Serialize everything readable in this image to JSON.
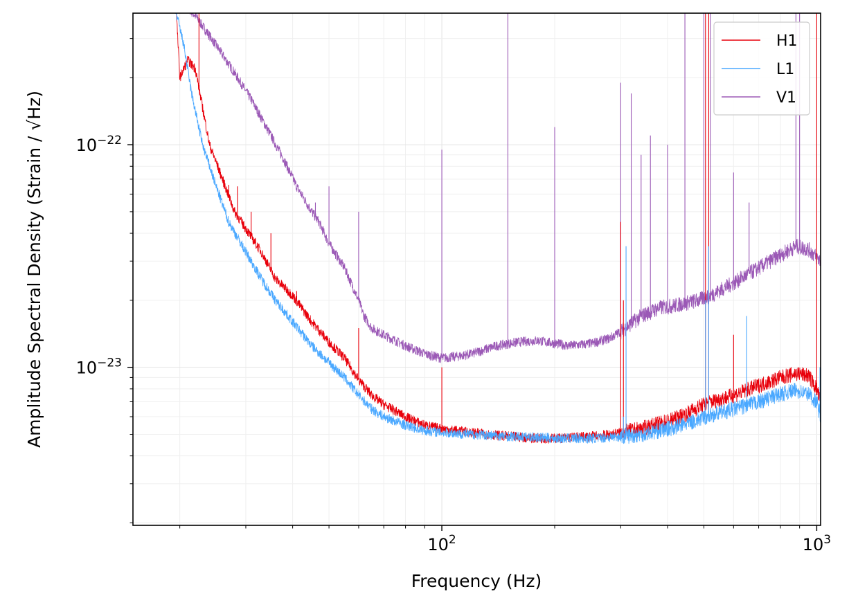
{
  "chart_data": {
    "type": "line",
    "xlabel": "Frequency (Hz)",
    "ylabel": "Amplitude Spectral Density (Strain / √Hz)",
    "xscale": "log",
    "yscale": "log",
    "xlim": [
      15,
      1024
    ],
    "ylim": [
      1.95e-24,
      3.9e-22
    ],
    "grid": true,
    "legend_position": "top-right",
    "x_ticks": [
      {
        "value": 100,
        "base": "10",
        "exp": "2"
      },
      {
        "value": 1000,
        "base": "10",
        "exp": "3"
      }
    ],
    "y_ticks": [
      {
        "value": 1e-23,
        "base": "10",
        "exp": "−23"
      },
      {
        "value": 1e-22,
        "base": "10",
        "exp": "−22"
      }
    ],
    "series": [
      {
        "name": "V1",
        "color": "#9b59b6",
        "x": [
          20,
          22,
          25,
          28,
          31,
          35,
          38,
          41,
          45,
          47,
          50,
          55,
          60,
          62,
          65,
          70,
          80,
          90,
          100,
          110,
          120,
          140,
          160,
          180,
          200,
          220,
          250,
          280,
          300,
          340,
          380,
          420,
          480,
          520,
          600,
          700,
          800,
          880,
          950,
          1024
        ],
        "y": [
          4.5e-22,
          3.8e-22,
          2.8e-22,
          2.1e-22,
          1.6e-22,
          1.1e-22,
          8.5e-23,
          6.5e-23,
          5e-23,
          4.5e-23,
          3.6e-23,
          2.8e-23,
          2e-23,
          1.7e-23,
          1.5e-23,
          1.4e-23,
          1.25e-23,
          1.15e-23,
          1.1e-23,
          1.12e-23,
          1.15e-23,
          1.25e-23,
          1.3e-23,
          1.32e-23,
          1.28e-23,
          1.25e-23,
          1.28e-23,
          1.35e-23,
          1.45e-23,
          1.7e-23,
          1.85e-23,
          1.9e-23,
          2e-23,
          2.1e-23,
          2.4e-23,
          2.8e-23,
          3.2e-23,
          3.5e-23,
          3.4e-23,
          3e-23
        ],
        "spikes": [
          {
            "f": 46,
            "a": 5.5e-23
          },
          {
            "f": 50,
            "a": 6.5e-23
          },
          {
            "f": 60,
            "a": 5e-23
          },
          {
            "f": 100,
            "a": 9.5e-23
          },
          {
            "f": 150,
            "a": 4e-22
          },
          {
            "f": 200,
            "a": 1.2e-22
          },
          {
            "f": 300,
            "a": 1.9e-22
          },
          {
            "f": 320,
            "a": 1.7e-22
          },
          {
            "f": 340,
            "a": 9e-23
          },
          {
            "f": 360,
            "a": 1.1e-22
          },
          {
            "f": 400,
            "a": 1e-22
          },
          {
            "f": 445,
            "a": 4e-22
          },
          {
            "f": 500,
            "a": 4e-22
          },
          {
            "f": 520,
            "a": 4e-22
          },
          {
            "f": 600,
            "a": 7.5e-23
          },
          {
            "f": 660,
            "a": 5.5e-23
          },
          {
            "f": 880,
            "a": 4e-22
          },
          {
            "f": 900,
            "a": 4e-22
          }
        ]
      },
      {
        "name": "H1",
        "color": "#e8000b",
        "x": [
          19.5,
          20,
          21,
          22,
          24,
          26,
          28,
          30,
          33,
          36,
          40,
          45,
          50,
          55,
          60,
          65,
          70,
          80,
          90,
          100,
          120,
          150,
          180,
          200,
          220,
          250,
          280,
          300,
          340,
          380,
          420,
          450,
          480,
          520,
          600,
          700,
          800,
          880,
          950,
          1000,
          1024
        ],
        "y": [
          4.5e-22,
          2e-22,
          2.4e-22,
          2.2e-22,
          1e-22,
          7e-23,
          5e-23,
          4.2e-23,
          3.3e-23,
          2.5e-23,
          2.1e-23,
          1.6e-23,
          1.3e-23,
          1.1e-23,
          8.8e-24,
          7.5e-24,
          6.8e-24,
          6e-24,
          5.5e-24,
          5.3e-24,
          5.1e-24,
          4.9e-24,
          4.8e-24,
          4.8e-24,
          4.85e-24,
          4.9e-24,
          5e-24,
          5.1e-24,
          5.3e-24,
          5.6e-24,
          5.9e-24,
          6.2e-24,
          6.6e-24,
          7e-24,
          7.5e-24,
          8.3e-24,
          9e-24,
          9.4e-24,
          9.2e-24,
          8e-24,
          7e-24
        ],
        "spikes": [
          {
            "f": 22.5,
            "a": 4.5e-22
          },
          {
            "f": 27,
            "a": 6.6e-23
          },
          {
            "f": 28.5,
            "a": 6.5e-23
          },
          {
            "f": 31,
            "a": 5e-23
          },
          {
            "f": 35,
            "a": 4e-23
          },
          {
            "f": 41,
            "a": 2.2e-23
          },
          {
            "f": 60,
            "a": 1.5e-23
          },
          {
            "f": 100,
            "a": 1e-23
          },
          {
            "f": 300,
            "a": 4.5e-23
          },
          {
            "f": 305,
            "a": 2e-23
          },
          {
            "f": 505,
            "a": 4e-22
          },
          {
            "f": 515,
            "a": 4e-22
          },
          {
            "f": 600,
            "a": 1.4e-23
          },
          {
            "f": 1000,
            "a": 4e-22
          }
        ]
      },
      {
        "name": "L1",
        "color": "#4aa8ff",
        "x": [
          18.5,
          19.5,
          20.5,
          21.5,
          23,
          25,
          27,
          30,
          33,
          36,
          40,
          45,
          50,
          55,
          60,
          65,
          70,
          80,
          90,
          100,
          120,
          150,
          180,
          200,
          220,
          250,
          280,
          300,
          340,
          380,
          420,
          480,
          520,
          600,
          700,
          800,
          880,
          950,
          1000,
          1024
        ],
        "y": [
          4.5e-22,
          4e-22,
          2.8e-22,
          1.7e-22,
          1e-22,
          6.5e-23,
          4.5e-23,
          3.3e-23,
          2.5e-23,
          2e-23,
          1.6e-23,
          1.25e-23,
          1.05e-23,
          9e-24,
          7.5e-24,
          6.5e-24,
          6e-24,
          5.5e-24,
          5.2e-24,
          5.1e-24,
          5e-24,
          4.9e-24,
          4.85e-24,
          4.8e-24,
          4.8e-24,
          4.8e-24,
          4.85e-24,
          4.9e-24,
          5e-24,
          5.2e-24,
          5.4e-24,
          5.8e-24,
          6.1e-24,
          6.5e-24,
          7e-24,
          7.6e-24,
          7.9e-24,
          7.6e-24,
          7e-24,
          6e-24
        ],
        "spikes": [
          {
            "f": 305,
            "a": 6e-24
          },
          {
            "f": 310,
            "a": 3.5e-23
          },
          {
            "f": 505,
            "a": 2e-23
          },
          {
            "f": 515,
            "a": 3.5e-23
          },
          {
            "f": 650,
            "a": 1.7e-23
          },
          {
            "f": 1020,
            "a": 1e-23
          }
        ]
      }
    ]
  }
}
